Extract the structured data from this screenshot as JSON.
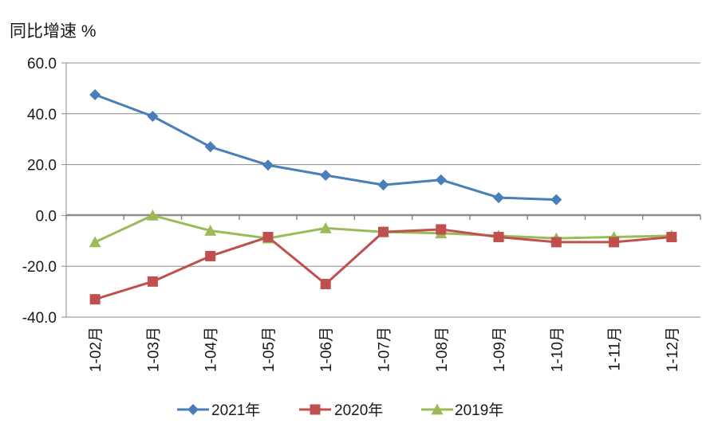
{
  "chart_data": {
    "type": "line",
    "ylabel": "同比增速 %",
    "categories": [
      "1-02月",
      "1-03月",
      "1-04月",
      "1-05月",
      "1-06月",
      "1-07月",
      "1-08月",
      "1-09月",
      "1-10月",
      "1-11月",
      "1-12月"
    ],
    "ylim": [
      -40,
      60
    ],
    "yticks": [
      "60.0",
      "40.0",
      "20.0",
      "0.0",
      "-20.0",
      "-40.0"
    ],
    "ytick_values": [
      60,
      40,
      20,
      0,
      -20,
      -40
    ],
    "grid": true,
    "legend_position": "bottom",
    "series": [
      {
        "name": "2021年",
        "color": "#4a7ebb",
        "marker": "diamond",
        "values": [
          47.5,
          39.0,
          27.0,
          19.8,
          15.8,
          12.0,
          14.0,
          7.0,
          6.2,
          null,
          null
        ]
      },
      {
        "name": "2020年",
        "color": "#c0504d",
        "marker": "square",
        "values": [
          -33.0,
          -26.0,
          -16.0,
          -8.5,
          -27.0,
          -6.5,
          -5.5,
          -8.5,
          -10.5,
          -10.5,
          -8.5
        ]
      },
      {
        "name": "2019年",
        "color": "#9bbb59",
        "marker": "triangle",
        "values": [
          -10.5,
          0.0,
          -6.0,
          -9.0,
          -5.0,
          -6.5,
          -7.0,
          -8.0,
          -9.0,
          -8.5,
          -8.0
        ]
      }
    ]
  }
}
